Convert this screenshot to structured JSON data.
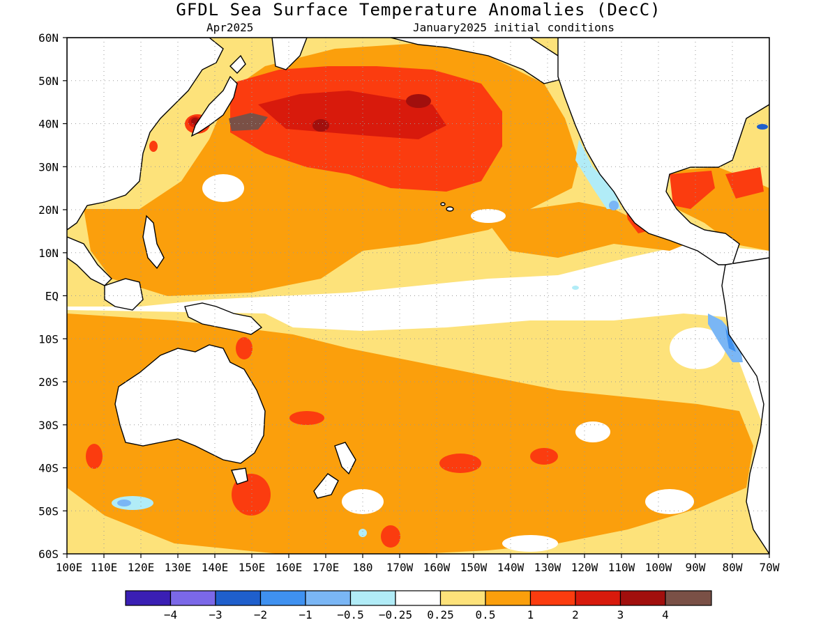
{
  "title": "GFDL Sea Surface Temperature Anomalies (DecC)",
  "subtitle_left": "Apr2025",
  "subtitle_right": "January2025 initial conditions",
  "map": {
    "lat_labels": [
      "60N",
      "50N",
      "40N",
      "30N",
      "20N",
      "10N",
      "EQ",
      "10S",
      "20S",
      "30S",
      "40S",
      "50S",
      "60S"
    ],
    "lon_labels": [
      "100E",
      "110E",
      "120E",
      "130E",
      "140E",
      "150E",
      "160E",
      "170E",
      "180",
      "170W",
      "160W",
      "150W",
      "140W",
      "130W",
      "120W",
      "110W",
      "100W",
      "90W",
      "80W",
      "70W"
    ],
    "lon_range": [
      "100E",
      "70W"
    ],
    "lat_range": [
      "60S",
      "60N"
    ],
    "grid": true,
    "colors": {
      "le_m4": "#3a1fb4",
      "m4_m3": "#7b68e8",
      "m3_m2": "#1f5fcc",
      "m2_m1": "#3f91f0",
      "m1_m05": "#7ab6f5",
      "m05_m025": "#b1ecf7",
      "m025_025": "#ffffff",
      "p025_05": "#fde27a",
      "p05_1": "#fb9f0c",
      "p1_2": "#fb3c0f",
      "p2_3": "#d81a0c",
      "p3_4": "#a10f0d",
      "ge_4": "#7a5046"
    }
  },
  "colorbar": {
    "boxes": [
      "#3a1fb4",
      "#7b68e8",
      "#1f5fcc",
      "#3f91f0",
      "#7ab6f5",
      "#b1ecf7",
      "#ffffff",
      "#fde27a",
      "#fb9f0c",
      "#fb3c0f",
      "#d81a0c",
      "#a10f0d",
      "#7a5046"
    ],
    "labels": [
      "−4",
      "−3",
      "−2",
      "−1",
      "−0.5",
      "−0.25",
      "0.25",
      "0.5",
      "1",
      "2",
      "3",
      "4"
    ]
  }
}
